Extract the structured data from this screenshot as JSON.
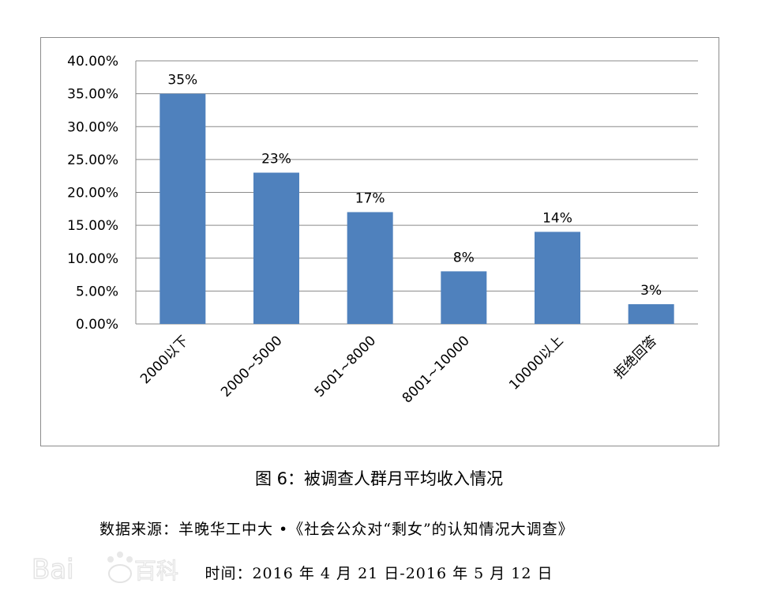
{
  "chart_data": {
    "type": "bar",
    "categories": [
      "2000以下",
      "2000~5000",
      "5001~8000",
      "8001~10000",
      "10000以上",
      "拒绝回答"
    ],
    "values": [
      0.35,
      0.23,
      0.17,
      0.08,
      0.14,
      0.03
    ],
    "data_labels": [
      "35%",
      "23%",
      "17%",
      "8%",
      "14%",
      "3%"
    ],
    "ylim": [
      0,
      0.4
    ],
    "yticks": [
      0,
      0.05,
      0.1,
      0.15,
      0.2,
      0.25,
      0.3,
      0.35,
      0.4
    ],
    "ytick_labels": [
      "0.00%",
      "5.00%",
      "10.00%",
      "15.00%",
      "20.00%",
      "25.00%",
      "30.00%",
      "35.00%",
      "40.00%"
    ],
    "bar_color": "#4f81bd",
    "grid": true,
    "legend": "none"
  },
  "caption": "图 6：被调查人群月平均收入情况",
  "source": "数据来源：羊晚华工中大 •《社会公众对“剩女”的认知情况大调查》",
  "date_range": "时间：2016 年 4 月 21 日-2016 年 5 月 12 日",
  "watermark_text": "Bai 百科"
}
